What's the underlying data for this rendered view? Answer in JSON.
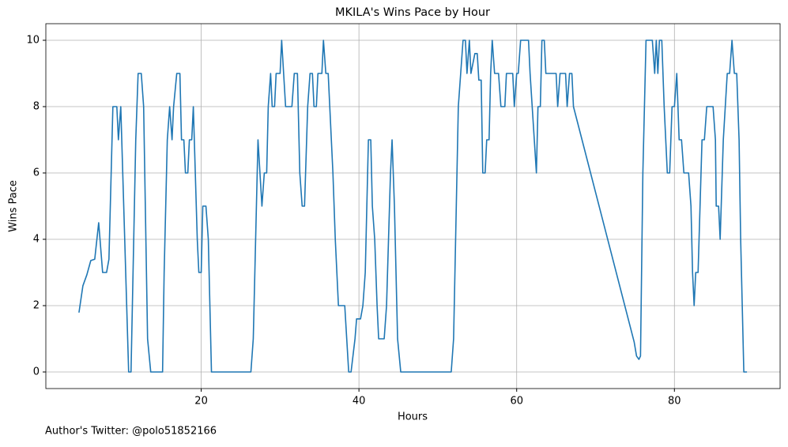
{
  "chart_data": {
    "type": "line",
    "title": "MKILA's Wins Pace by Hour",
    "xlabel": "Hours",
    "ylabel": "Wins Pace",
    "footnote": "Author's Twitter: @polo51852166",
    "x": [
      4.5,
      5.0,
      5.5,
      6.0,
      6.5,
      7.0,
      7.5,
      8.0,
      8.3,
      8.8,
      9.3,
      9.5,
      9.8,
      10.3,
      10.8,
      11.1,
      11.7,
      12.0,
      12.4,
      12.7,
      13.2,
      13.6,
      15.1,
      15.3,
      15.7,
      16.0,
      16.3,
      16.5,
      16.9,
      17.3,
      17.5,
      17.8,
      18.0,
      18.3,
      18.5,
      18.8,
      19.0,
      19.5,
      19.7,
      20.0,
      20.2,
      20.6,
      20.9,
      21.3,
      26.3,
      26.6,
      27.2,
      27.7,
      28.0,
      28.3,
      28.5,
      28.8,
      29.0,
      29.3,
      29.5,
      30.0,
      30.2,
      30.7,
      31.5,
      31.8,
      32.2,
      32.5,
      32.8,
      33.1,
      33.5,
      33.8,
      34.1,
      34.3,
      34.6,
      34.8,
      35.3,
      35.5,
      35.8,
      36.1,
      36.7,
      37.0,
      37.4,
      38.2,
      38.7,
      39.0,
      39.5,
      39.7,
      40.2,
      40.5,
      40.8,
      41.2,
      41.5,
      41.7,
      42.0,
      42.3,
      42.5,
      43.2,
      43.5,
      44.0,
      44.2,
      44.5,
      44.9,
      45.3,
      51.7,
      52.0,
      52.6,
      53.2,
      53.5,
      53.7,
      54.0,
      54.2,
      54.7,
      55.0,
      55.2,
      55.5,
      55.7,
      56.0,
      56.2,
      56.5,
      56.7,
      56.9,
      57.2,
      57.7,
      58.0,
      58.5,
      58.7,
      59.5,
      59.7,
      60.0,
      60.2,
      60.5,
      61.5,
      61.7,
      62.5,
      62.7,
      63.0,
      63.2,
      63.5,
      63.7,
      65.0,
      65.2,
      65.5,
      66.2,
      66.4,
      66.7,
      67.0,
      67.2,
      74.9,
      75.2,
      75.5,
      75.7,
      76.0,
      76.4,
      77.2,
      77.5,
      77.7,
      77.9,
      78.1,
      78.4,
      78.7,
      79.1,
      79.4,
      79.7,
      80.0,
      80.3,
      80.6,
      80.9,
      81.2,
      81.8,
      82.1,
      82.3,
      82.5,
      82.7,
      83.0,
      83.5,
      83.8,
      84.1,
      84.9,
      85.2,
      85.3,
      85.6,
      85.8,
      86.2,
      86.7,
      87.0,
      87.3,
      87.6,
      87.9,
      88.2,
      88.4,
      88.8,
      89.2
    ],
    "series": [
      {
        "color": "#1f77b4",
        "values": [
          1.79,
          2.6,
          2.93,
          3.36,
          3.4,
          4.5,
          3,
          3,
          3.4,
          8,
          8,
          7,
          8,
          4,
          0,
          0,
          7,
          9,
          9,
          8,
          1,
          0,
          0,
          3,
          7,
          8,
          7,
          8,
          9,
          9,
          7,
          7,
          6,
          6,
          7,
          7,
          8,
          4,
          3,
          3,
          5,
          5,
          4,
          0,
          0,
          1,
          7,
          5,
          6,
          6,
          8,
          9,
          8,
          8,
          9,
          9,
          10,
          8,
          8,
          9,
          9,
          6,
          5,
          5,
          8,
          9,
          9,
          8,
          8,
          9,
          9,
          10,
          9,
          9,
          6,
          4,
          2,
          2,
          0,
          0,
          1,
          1.6,
          1.6,
          2,
          3,
          7,
          7,
          5,
          4,
          2,
          1,
          1,
          2,
          6,
          7,
          5,
          1,
          0,
          0,
          1,
          8,
          10,
          10,
          9,
          10,
          9,
          9.6,
          9.6,
          8.8,
          8.8,
          6,
          6,
          7,
          7,
          9,
          10,
          9,
          9,
          8,
          8,
          9,
          9,
          8,
          9,
          9,
          10,
          10,
          9,
          6,
          8,
          8,
          10,
          10,
          9,
          9,
          8,
          9,
          9,
          8,
          9,
          9,
          8,
          0.9,
          0.48,
          0.38,
          0.48,
          6,
          10,
          10,
          9,
          10,
          9,
          10,
          10,
          8,
          6,
          6,
          8,
          8,
          9,
          7,
          7,
          6,
          6,
          5,
          3,
          2,
          3,
          3,
          7,
          7,
          8,
          8,
          7,
          5,
          5,
          4,
          7,
          9,
          9,
          10,
          9,
          9,
          7,
          4,
          0,
          0
        ]
      }
    ],
    "xlim": [
      0.3,
      93.4
    ],
    "ylim": [
      -0.5,
      10.5
    ],
    "xticks": [
      20,
      40,
      60,
      80
    ],
    "yticks": [
      0,
      2,
      4,
      6,
      8,
      10
    ],
    "grid": true
  }
}
